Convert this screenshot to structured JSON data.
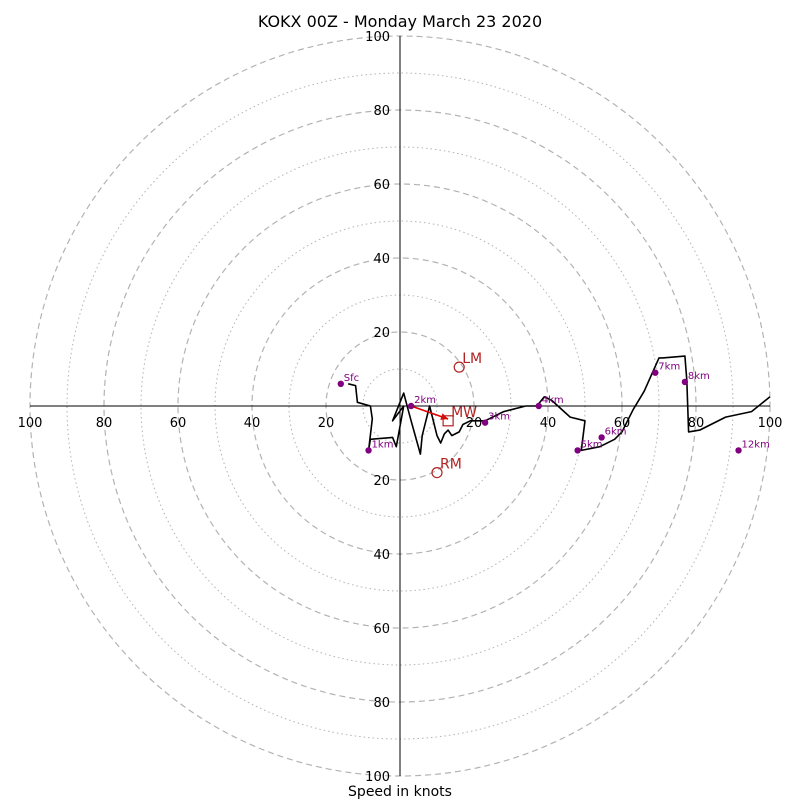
{
  "chart_data": {
    "type": "line",
    "title": "KOKX 00Z - Monday March 23 2020",
    "xlabel": "Speed in knots",
    "ylabel": "",
    "xlim": [
      -100,
      100
    ],
    "ylim": [
      -100,
      100
    ],
    "ring_major": [
      20,
      40,
      60,
      80,
      100
    ],
    "ring_minor": [
      10,
      30,
      50,
      70,
      90
    ],
    "tick_labels": {
      "x_left": [
        "100",
        "80",
        "60",
        "40",
        "20"
      ],
      "x_right": [
        "20",
        "40",
        "60",
        "80",
        "100"
      ],
      "y_top": [
        "100",
        "80",
        "60",
        "40",
        "20"
      ],
      "y_bottom": [
        "20",
        "40",
        "60",
        "80",
        "100"
      ]
    },
    "series": [
      {
        "x": [
          -14,
          -12,
          -11.5,
          -8,
          -7.5,
          -8.5,
          -8,
          -2,
          -1,
          1,
          -2,
          1,
          3,
          5.5,
          6,
          8,
          10,
          11,
          12,
          13,
          14,
          16,
          17,
          19,
          23,
          28,
          34,
          37,
          39,
          41,
          46,
          50,
          49,
          54,
          58,
          60,
          63,
          66,
          70,
          71,
          77,
          77.5,
          78,
          81,
          88,
          95,
          100
        ],
        "y": [
          6,
          5.5,
          1,
          0,
          -3.5,
          -12,
          -9,
          -8.5,
          -11,
          0,
          -4,
          3.5,
          -4,
          -13,
          -8,
          0,
          -8,
          -10,
          -7.5,
          -6.5,
          -8,
          -7,
          -5,
          -4,
          -4,
          -1.5,
          0,
          0,
          2.5,
          1.5,
          -3,
          -4,
          -12,
          -11,
          -9,
          -7,
          -1,
          4,
          13,
          13,
          13.5,
          7,
          -7,
          -6.5,
          -3,
          -1.5,
          2.5
        ]
      }
    ],
    "height_markers": [
      {
        "label": "Sfc",
        "x": -16,
        "y": 6
      },
      {
        "label": "1km",
        "x": -8.5,
        "y": -12
      },
      {
        "label": "2km",
        "x": 3,
        "y": 0
      },
      {
        "label": "3km",
        "x": 23,
        "y": -4.5
      },
      {
        "label": "4km",
        "x": 37.5,
        "y": 0
      },
      {
        "label": "5km",
        "x": 48,
        "y": -12
      },
      {
        "label": "6km",
        "x": 54.5,
        "y": -8.5
      },
      {
        "label": "7km",
        "x": 69,
        "y": 9
      },
      {
        "label": "8km",
        "x": 77,
        "y": 6.5
      },
      {
        "label": "12km",
        "x": 91.5,
        "y": -12
      }
    ],
    "motion_markers": [
      {
        "label": "LM",
        "x": 16,
        "y": 10.5,
        "shape": "circle"
      },
      {
        "label": "RM",
        "x": 10,
        "y": -18,
        "shape": "circle"
      },
      {
        "label": "MW",
        "x": 13,
        "y": -4,
        "shape": "square"
      }
    ],
    "shear_vector": {
      "x1": 3,
      "y1": 0,
      "x2": 13,
      "y2": -3.5
    },
    "colors": {
      "hodograph": "#000000",
      "height_marker": "#800080",
      "motion_marker": "#b22222",
      "shear_vector": "#e00000",
      "grid": "#b3b3b3",
      "axis": "#000000"
    }
  }
}
